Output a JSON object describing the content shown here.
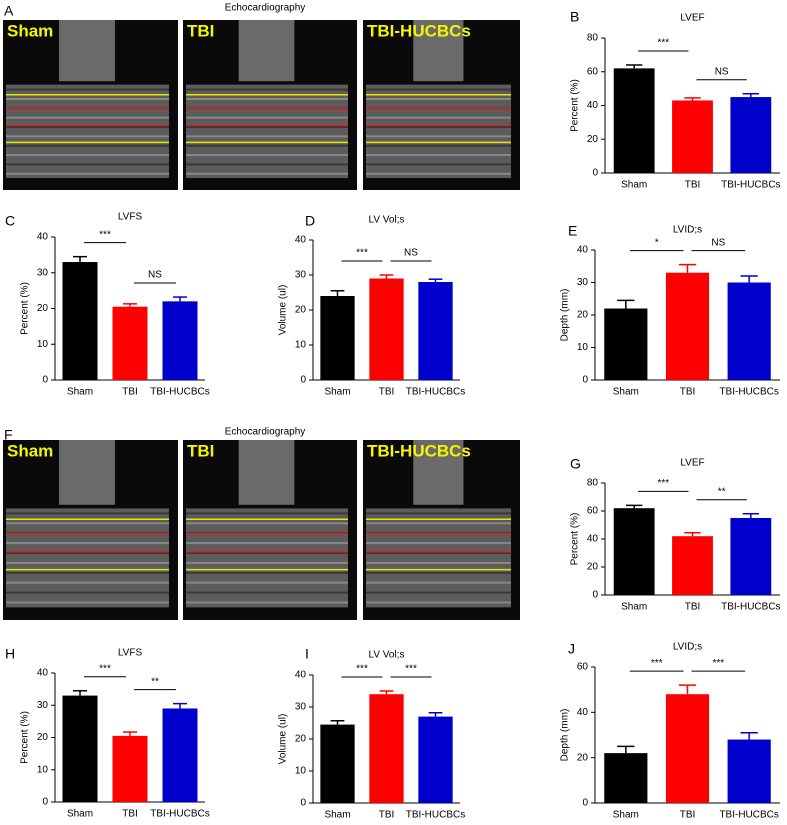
{
  "image_panels": [
    {
      "panel": "A",
      "title": "Echocardiography",
      "labels": [
        "Sham",
        "TBI",
        "TBI-HUCBCs"
      ]
    },
    {
      "panel": "F",
      "title": "Echocardiography",
      "labels": [
        "Sham",
        "TBI",
        "TBI-HUCBCs"
      ]
    }
  ],
  "chart_data": [
    {
      "type": "bar",
      "panel": "B",
      "title": "LVEF",
      "ylabel": "Percent (%)",
      "categories": [
        "Sham",
        "TBI",
        "TBI-HUCBCs"
      ],
      "values": [
        62,
        43,
        45
      ],
      "errors": [
        2,
        1.5,
        2
      ],
      "colors": [
        "#000000",
        "#ff0000",
        "#0000cc"
      ],
      "ylim": [
        0,
        80
      ],
      "yticks": [
        0,
        20,
        40,
        60,
        80
      ],
      "comparisons": [
        "***",
        "NS"
      ]
    },
    {
      "type": "bar",
      "panel": "C",
      "title": "LVFS",
      "ylabel": "Percent (%)",
      "categories": [
        "Sham",
        "TBI",
        "TBI-HUCBCs"
      ],
      "values": [
        33,
        20.5,
        22
      ],
      "errors": [
        1.5,
        0.8,
        1.2
      ],
      "colors": [
        "#000000",
        "#ff0000",
        "#0000cc"
      ],
      "ylim": [
        0,
        40
      ],
      "yticks": [
        0,
        10,
        20,
        30,
        40
      ],
      "comparisons": [
        "***",
        "NS"
      ]
    },
    {
      "type": "bar",
      "panel": "D",
      "title": "LV Vol;s",
      "ylabel": "Volume (ul)",
      "categories": [
        "Sham",
        "TBI",
        "TBI-HUCBCs"
      ],
      "values": [
        24,
        29,
        28
      ],
      "errors": [
        1.5,
        1,
        0.8
      ],
      "colors": [
        "#000000",
        "#ff0000",
        "#0000cc"
      ],
      "ylim": [
        0,
        40
      ],
      "yticks": [
        0,
        10,
        20,
        30,
        40
      ],
      "comparisons": [
        "***",
        "NS"
      ]
    },
    {
      "type": "bar",
      "panel": "E",
      "title": "LVID;s",
      "ylabel": "Depth (mm)",
      "categories": [
        "Sham",
        "TBI",
        "TBI-HUCBCs"
      ],
      "values": [
        22,
        33,
        30
      ],
      "errors": [
        2.5,
        2.5,
        2
      ],
      "colors": [
        "#000000",
        "#ff0000",
        "#0000cc"
      ],
      "ylim": [
        0,
        40
      ],
      "yticks": [
        0,
        10,
        20,
        30,
        40
      ],
      "comparisons": [
        "*",
        "NS"
      ]
    },
    {
      "type": "bar",
      "panel": "G",
      "title": "LVEF",
      "ylabel": "Percent (%)",
      "categories": [
        "Sham",
        "TBI",
        "TBI-HUCBCs"
      ],
      "values": [
        62,
        42,
        55
      ],
      "errors": [
        2,
        2.5,
        3
      ],
      "colors": [
        "#000000",
        "#ff0000",
        "#0000cc"
      ],
      "ylim": [
        0,
        80
      ],
      "yticks": [
        0,
        20,
        40,
        60,
        80
      ],
      "comparisons": [
        "***",
        "**"
      ]
    },
    {
      "type": "bar",
      "panel": "H",
      "title": "LVFS",
      "ylabel": "Percent (%)",
      "categories": [
        "Sham",
        "TBI",
        "TBI-HUCBCs"
      ],
      "values": [
        33,
        20.5,
        29
      ],
      "errors": [
        1.5,
        1.2,
        1.5
      ],
      "colors": [
        "#000000",
        "#ff0000",
        "#0000cc"
      ],
      "ylim": [
        0,
        40
      ],
      "yticks": [
        0,
        10,
        20,
        30,
        40
      ],
      "comparisons": [
        "***",
        "**"
      ]
    },
    {
      "type": "bar",
      "panel": "I",
      "title": "LV Vol;s",
      "ylabel": "Volume (ul)",
      "categories": [
        "Sham",
        "TBI",
        "TBI-HUCBCs"
      ],
      "values": [
        24.5,
        34,
        27
      ],
      "errors": [
        1.2,
        1,
        1.2
      ],
      "colors": [
        "#000000",
        "#ff0000",
        "#0000cc"
      ],
      "ylim": [
        0,
        40
      ],
      "yticks": [
        0,
        10,
        20,
        30,
        40
      ],
      "comparisons": [
        "***",
        "***"
      ]
    },
    {
      "type": "bar",
      "panel": "J",
      "title": "LVID;s",
      "ylabel": "Depth (mm)",
      "categories": [
        "Sham",
        "TBI",
        "TBI-HUCBCs"
      ],
      "values": [
        22,
        48,
        28
      ],
      "errors": [
        3,
        4,
        3
      ],
      "colors": [
        "#000000",
        "#ff0000",
        "#0000cc"
      ],
      "ylim": [
        0,
        60
      ],
      "yticks": [
        0,
        20,
        40,
        60
      ],
      "comparisons": [
        "***",
        "***"
      ]
    }
  ]
}
